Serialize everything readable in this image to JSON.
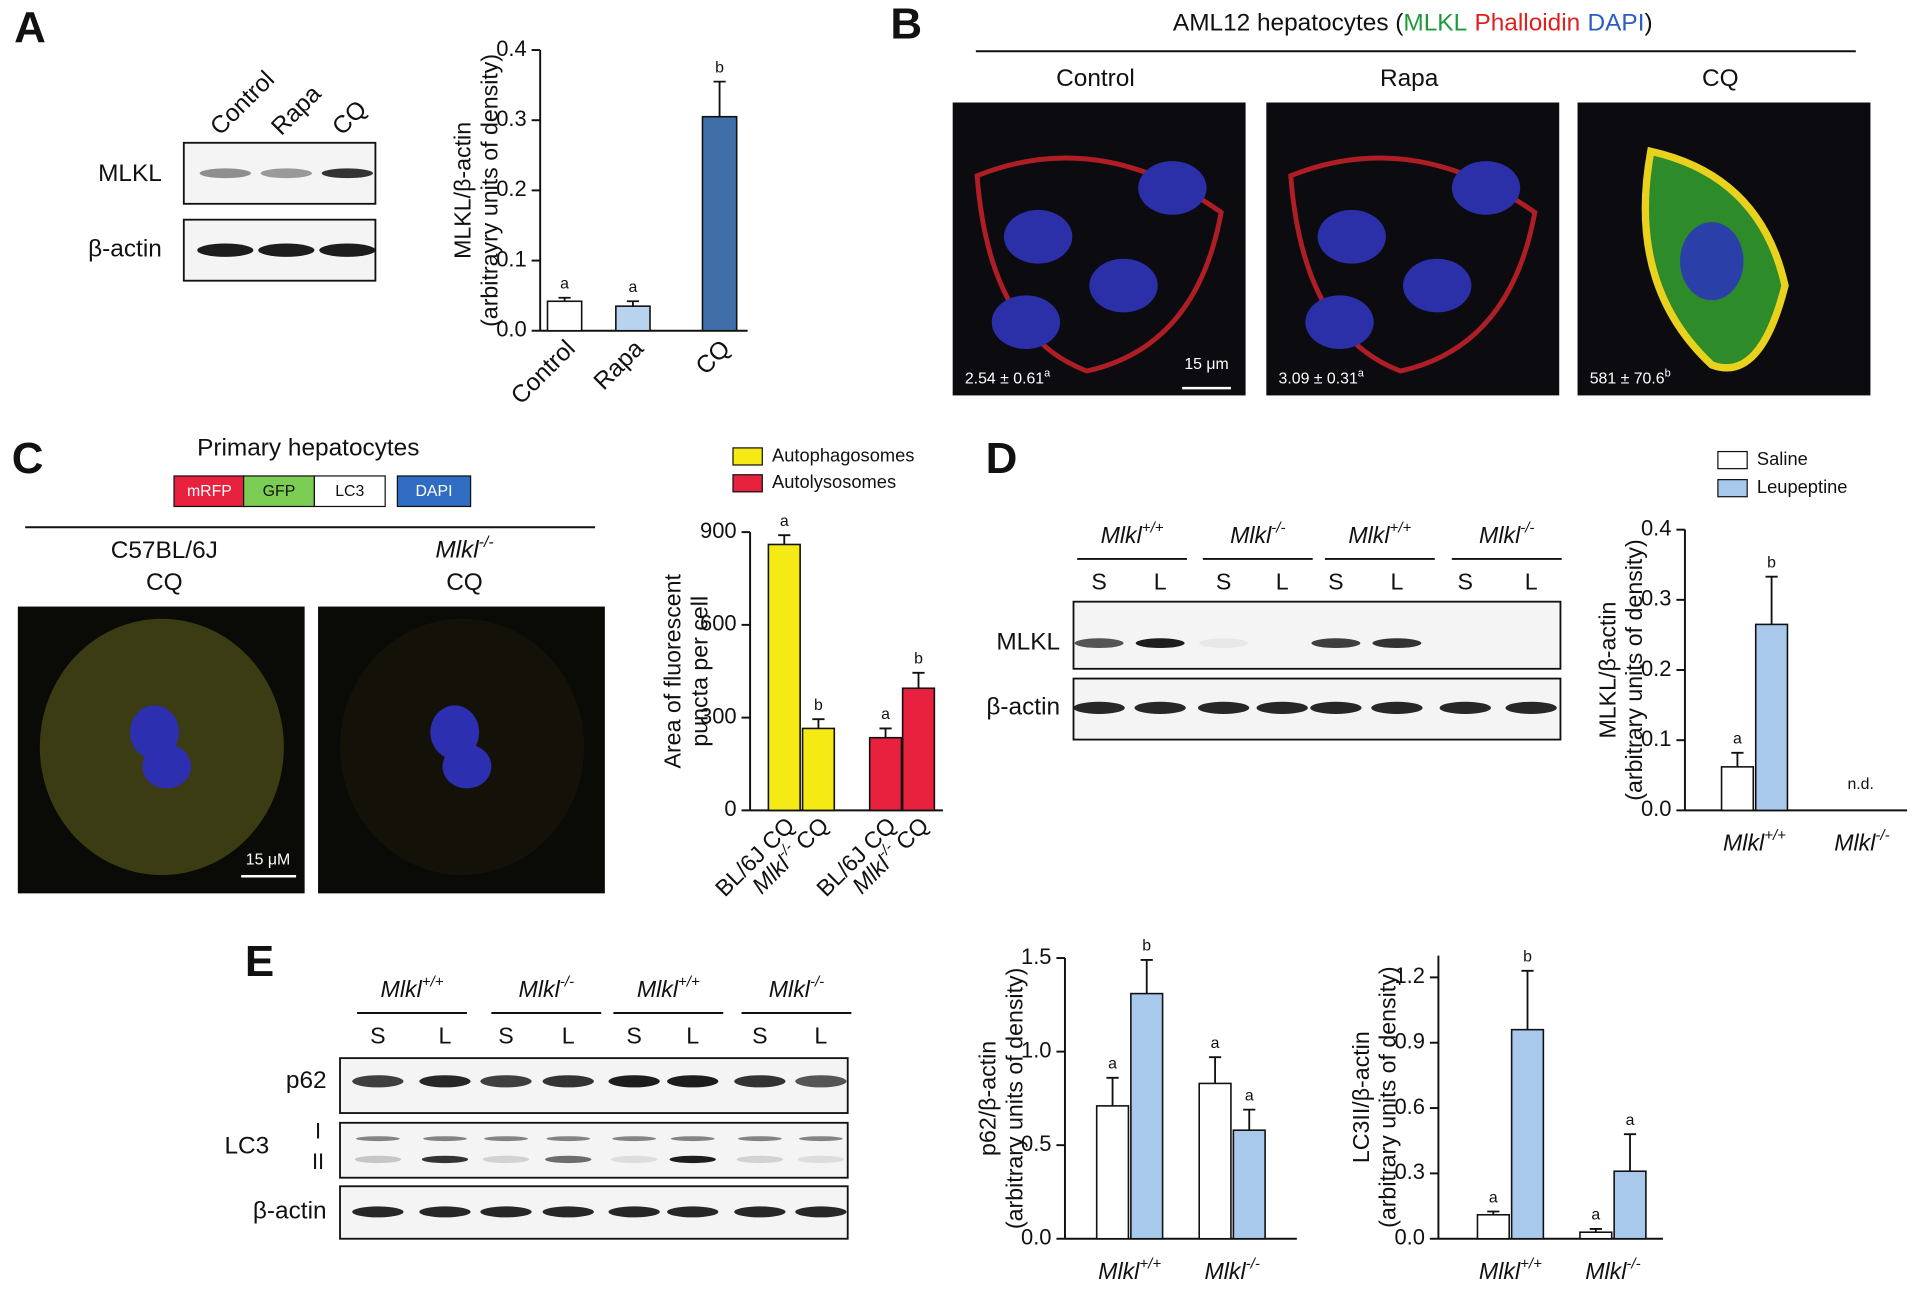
{
  "panel_labels": [
    "A",
    "B",
    "C",
    "D",
    "E"
  ],
  "blot_A": {
    "lanes": [
      "Control",
      "Rapa",
      "CQ"
    ],
    "rows": [
      "MLKL",
      "β-actin"
    ]
  },
  "panel_B": {
    "title_parts": [
      "AML12 hepatocytes (",
      "MLKL",
      "Phalloidin",
      "DAPI",
      ")"
    ],
    "images": [
      {
        "label": "Control",
        "quant": "2.54 ± 0.61",
        "sup": "a"
      },
      {
        "label": "Rapa",
        "quant": "3.09 ± 0.31",
        "sup": "a"
      },
      {
        "label": "CQ",
        "quant": "581 ± 70.6",
        "sup": "b"
      }
    ],
    "scale_bar": "15 μm"
  },
  "panel_C": {
    "title": "Primary hepatocytes",
    "construct": [
      "mRFP",
      "GFP",
      "LC3"
    ],
    "stain": "DAPI",
    "images": [
      {
        "lines": [
          "C57BL/6J",
          "CQ"
        ]
      },
      {
        "lines": [
          "Mlkl-/-",
          "CQ"
        ]
      }
    ],
    "scale_bar": "15 μM"
  },
  "blot_D": {
    "groups": [
      "Mlkl+/+",
      "Mlkl-/-",
      "Mlkl+/+",
      "Mlkl-/-"
    ],
    "lanes": [
      "S",
      "L",
      "S",
      "L",
      "S",
      "L",
      "S",
      "L"
    ],
    "rows": [
      "MLKL",
      "β-actin"
    ]
  },
  "blot_E": {
    "groups": [
      "Mlkl+/+",
      "Mlkl-/-",
      "Mlkl+/+",
      "Mlkl-/-"
    ],
    "lanes": [
      "S",
      "L",
      "S",
      "L",
      "S",
      "L",
      "S",
      "L"
    ],
    "rows": [
      "p62",
      "LC3",
      "β-actin"
    ],
    "lc3_bands": [
      "I",
      "II"
    ]
  },
  "chart_data": [
    {
      "type": "bar",
      "ylabel": [
        "MLKL/β-actin",
        "(arbitrayry units of density)"
      ],
      "categories": [
        "Control",
        "Rapa",
        "CQ"
      ],
      "values": [
        0.042,
        0.035,
        0.305
      ],
      "errors": [
        0.005,
        0.007,
        0.05
      ],
      "letters": [
        "a",
        "a",
        "b"
      ],
      "colors": [
        "#ffffff",
        "#b9d3ee",
        "#3f6ea8"
      ],
      "ylim": [
        0,
        0.4
      ],
      "yticks": [
        {
          "value": 0,
          "label": "0.0"
        },
        0.1,
        0.2,
        0.3,
        0.4
      ]
    },
    {
      "type": "bar",
      "ylabel": [
        "Area of fluorescent",
        "puncta per cell"
      ],
      "categories": [
        "BL/6J CQ",
        "Mlkl-/- CQ"
      ],
      "series": [
        {
          "name": "Autophagosomes",
          "color": "#f5ea14",
          "values": [
            860,
            265
          ],
          "errors": [
            30,
            30
          ],
          "letters": [
            "a",
            "b"
          ]
        },
        {
          "name": "Autolysosomes",
          "color": "#e8213f",
          "values": [
            235,
            395
          ],
          "errors": [
            30,
            50
          ],
          "letters": [
            "a",
            "b"
          ]
        }
      ],
      "ylim": [
        0,
        900
      ],
      "yticks": [
        0,
        300,
        600,
        900
      ]
    },
    {
      "type": "bar",
      "ylabel": [
        "MLKL/β-actin",
        "(arbitrary units of density)"
      ],
      "categories": [
        "Mlkl+/+",
        "Mlkl-/-"
      ],
      "series": [
        {
          "name": "Saline",
          "color": "#ffffff",
          "values": [
            0.062,
            null
          ],
          "errors": [
            0.02,
            null
          ],
          "letters": [
            "a",
            null
          ]
        },
        {
          "name": "Leupeptine",
          "color": "#a9c9ec",
          "values": [
            0.265,
            null
          ],
          "errors": [
            0.068,
            null
          ],
          "letters": [
            "b",
            null
          ]
        }
      ],
      "annotations": [
        "n.d."
      ],
      "ylim": [
        0,
        0.4
      ],
      "yticks": [
        {
          "value": 0,
          "label": "0.0"
        },
        0.1,
        0.2,
        0.3,
        0.4
      ]
    },
    {
      "type": "bar",
      "ylabel": [
        "p62/β-actin",
        "(arbitrary units of density)"
      ],
      "categories": [
        "Mlkl+/+",
        "Mlkl-/-"
      ],
      "series": [
        {
          "name": "Saline",
          "color": "#ffffff",
          "values": [
            0.71,
            0.83
          ],
          "errors": [
            0.15,
            0.14
          ],
          "letters": [
            "a",
            "a"
          ]
        },
        {
          "name": "Leupeptine",
          "color": "#a9c9ec",
          "values": [
            1.31,
            0.58
          ],
          "errors": [
            0.18,
            0.11
          ],
          "letters": [
            "b",
            "a"
          ]
        }
      ],
      "ylim": [
        0,
        1.5
      ],
      "yticks": [
        {
          "value": 0,
          "label": "0.0"
        },
        0.5,
        {
          "value": 1,
          "label": "1.0"
        },
        1.5
      ]
    },
    {
      "type": "bar",
      "ylabel": [
        "LC3II/β-actin",
        "(arbitrary units of density)"
      ],
      "categories": [
        "Mlkl+/+",
        "Mlkl-/-"
      ],
      "series": [
        {
          "name": "Saline",
          "color": "#ffffff",
          "values": [
            0.11,
            0.03
          ],
          "errors": [
            0.015,
            0.015
          ],
          "letters": [
            "a",
            "a"
          ]
        },
        {
          "name": "Leupeptine",
          "color": "#a9c9ec",
          "values": [
            0.96,
            0.31
          ],
          "errors": [
            0.27,
            0.17
          ],
          "letters": [
            "b",
            "a"
          ]
        }
      ],
      "ylim": [
        0,
        1.3
      ],
      "yticks": [
        {
          "value": 0,
          "label": "0.0"
        },
        0.3,
        0.6,
        0.9,
        1.2
      ]
    }
  ]
}
